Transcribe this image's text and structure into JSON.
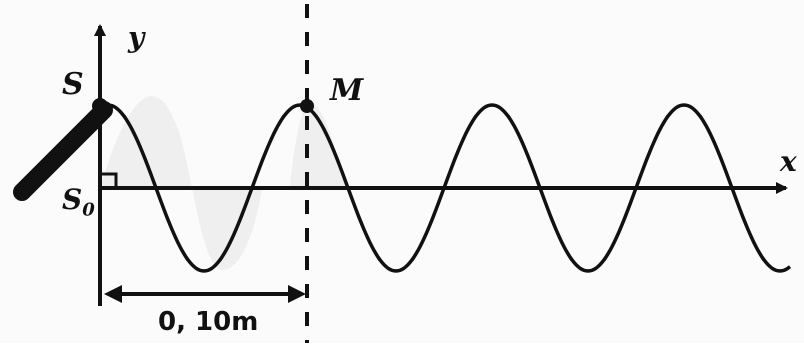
{
  "labels": {
    "y_axis": "y",
    "x_axis": "x",
    "source": "S",
    "source_rest": "S",
    "source_rest_sub": "0",
    "point_m": "M",
    "distance": "0, 10m"
  },
  "colors": {
    "ink": "#111111",
    "shade": "#d9d9d9"
  }
}
